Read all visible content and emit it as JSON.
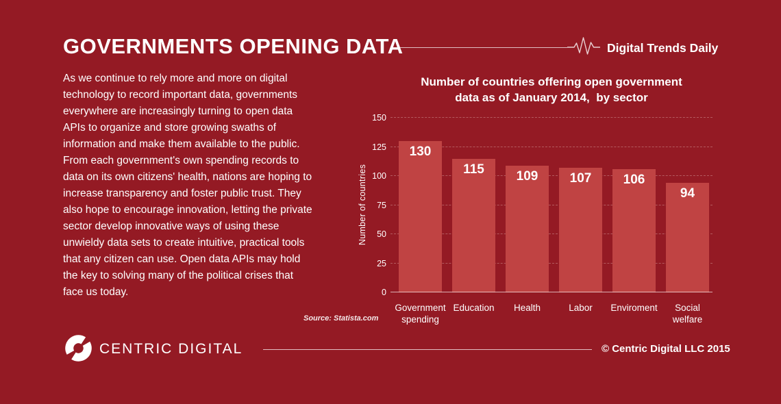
{
  "page": {
    "title": "GOVERNMENTS OPENING DATA",
    "brand": "Digital Trends Daily",
    "body_text": "As we continue to rely more and more on digital technology to record important data, governments everywhere are increasingly turning to open data APIs to organize and store growing swaths of information and make them available to the public. From each government's own spending records to data on its own citizens' health, nations are hoping to increase transparency and foster public trust. They also hope to encourage innovation, letting the private sector develop innovative ways of using these unwieldy data sets to create intuitive, practical tools that any citizen can use. Open data APIs may hold the key to solving many of the political crises that face us today.",
    "source": "Source: Statista.com",
    "footer": {
      "logo_text": "CENTRIC DIGITAL",
      "copyright": "© Centric Digital LLC 2015"
    },
    "colors": {
      "background": "#941a24",
      "bar": "#c04343",
      "text": "#ffffff",
      "gridline": "#cf9090",
      "divider": "rgba(255,255,255,0.72)"
    },
    "icons": {
      "pulse": "heartbeat-pulse-icon",
      "logo": "centric-digital-ring-logo"
    }
  },
  "chart_data": {
    "type": "bar",
    "title": "Number of countries offering open government\ndata as of January 2014,  by sector",
    "categories": [
      "Government spending",
      "Education",
      "Health",
      "Labor",
      "Enviroment",
      "Social welfare"
    ],
    "values": [
      130,
      115,
      109,
      107,
      106,
      94
    ],
    "xlabel": "",
    "ylabel": "Number of countries",
    "yticks": [
      0,
      25,
      50,
      75,
      100,
      125,
      150
    ],
    "ylim": [
      0,
      150
    ],
    "grid": "horizontal-dashed",
    "legend": "none",
    "value_labels": "inside-top",
    "bar_color": "#c04343"
  }
}
